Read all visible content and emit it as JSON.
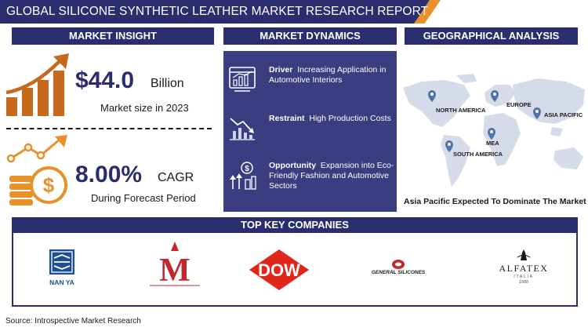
{
  "title": "GLOBAL SILICONE SYNTHETIC LEATHER MARKET RESEARCH REPORT",
  "colors": {
    "navy": "#2b2e6e",
    "orange": "#e8912c",
    "panel": "#3a3d80",
    "map": "#d5dbe8"
  },
  "market_insight": {
    "header": "MARKET INSIGHT",
    "size_value": "$44.0",
    "size_unit": "Billion",
    "size_caption": "Market size in 2023",
    "cagr_value": "8.00%",
    "cagr_unit": "CAGR",
    "cagr_caption": "During Forecast Period",
    "icons": [
      "growth-chart-icon",
      "dollar-coins-icon"
    ]
  },
  "market_dynamics": {
    "header": "MARKET DYNAMICS",
    "items": [
      {
        "label": "Driver",
        "text": "Increasing Application in Automotive Interiors",
        "icon": "chart-window-icon"
      },
      {
        "label": "Restraint",
        "text": "High Production Costs",
        "icon": "declining-chart-icon"
      },
      {
        "label": "Opportunity",
        "text": "Expansion into Eco-Friendly Fashion and Automotive Sectors",
        "icon": "rising-bars-dollar-icon"
      }
    ]
  },
  "geographical_analysis": {
    "header": "GEOGRAPHICAL ANALYSIS",
    "regions": [
      "NORTH AMERICA",
      "EUROPE",
      "ASIA PACIFIC",
      "MEA",
      "SOUTH AMERICA"
    ],
    "caption": "Asia Pacific Expected To Dominate The Market",
    "icon": "world-map-pin-icon"
  },
  "top_companies": {
    "header": "TOP KEY COMPANIES",
    "logos": [
      {
        "name": "NAN YA"
      },
      {
        "name": "M"
      },
      {
        "name": "DOW"
      },
      {
        "name": "GENERAL SILICONES"
      },
      {
        "name": "ALFATEX",
        "sub": "ITALIA",
        "year": "1988"
      }
    ]
  },
  "source": "Source: Introspective Market Research"
}
